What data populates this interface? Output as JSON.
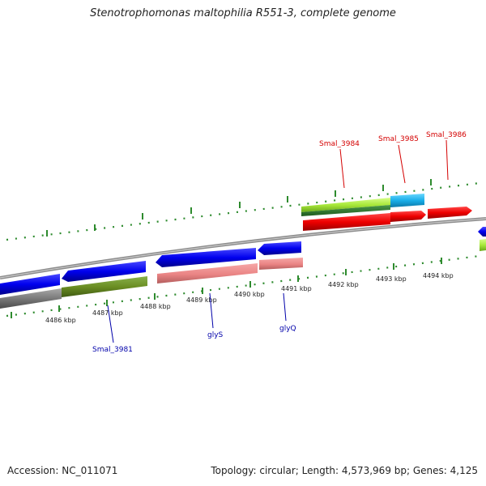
{
  "title": "Stenotrophomonas maltophilia R551-3, complete genome",
  "footer": {
    "accession": "Accession: NC_011071",
    "summary": "Topology: circular; Length: 4,573,969 bp; Genes: 4,125"
  },
  "colors": {
    "backbone": "#8c8c8c",
    "tick": "#2e8b2e",
    "label_forward": "#d40000",
    "label_reverse": "#0000aa"
  },
  "scale_labels": [
    "4486 kbp",
    "4487 kbp",
    "4488 kbp",
    "4489 kbp",
    "4490 kbp",
    "4491 kbp",
    "4492 kbp",
    "4493 kbp",
    "4494 kbp"
  ],
  "gene_labels": {
    "forward": [
      "Smal_3984",
      "Smal_3985",
      "Smal_3986"
    ],
    "reverse": [
      "Smal_3981",
      "glyS",
      "glyQ"
    ]
  }
}
